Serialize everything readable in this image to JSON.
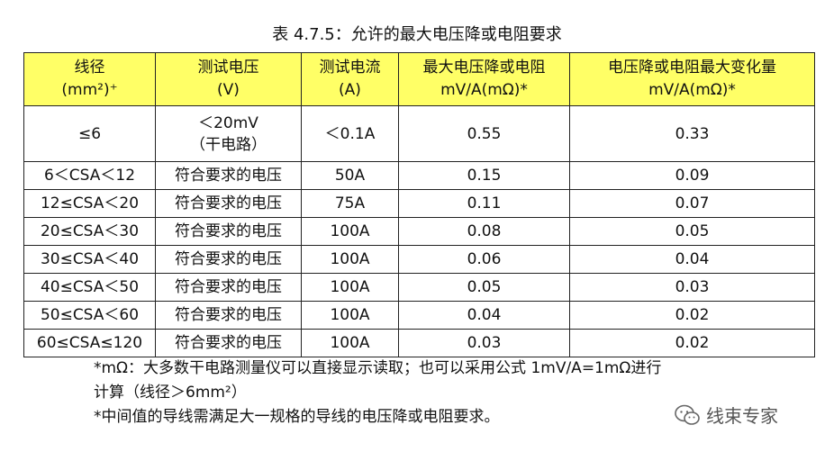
{
  "caption": "表 4.7.5：允许的最大电压降或电阻要求",
  "headers": [
    {
      "line1": "线径",
      "line2": "(mm²)⁺"
    },
    {
      "line1": "测试电压",
      "line2": "(V)"
    },
    {
      "line1": "测试电流",
      "line2": "(A)"
    },
    {
      "line1": "最大电压降或电阻",
      "line2": "mV/A(mΩ)*"
    },
    {
      "line1": "电压降或电阻最大变化量",
      "line2": "mV/A(mΩ)*"
    }
  ],
  "first_row": {
    "size": "≤6",
    "voltage_line1": "＜20mV",
    "voltage_line2": "（干电路）",
    "current": "＜0.1A",
    "max_drop": "0.55",
    "max_change": "0.33"
  },
  "rows": [
    {
      "size": "6＜CSA＜12",
      "voltage": "符合要求的电压",
      "current": "50A",
      "max_drop": "0.15",
      "max_change": "0.09"
    },
    {
      "size": "12≤CSA＜20",
      "voltage": "符合要求的电压",
      "current": "75A",
      "max_drop": "0.11",
      "max_change": "0.07"
    },
    {
      "size": "20≤CSA＜30",
      "voltage": "符合要求的电压",
      "current": "100A",
      "max_drop": "0.08",
      "max_change": "0.05"
    },
    {
      "size": "30≤CSA＜40",
      "voltage": "符合要求的电压",
      "current": "100A",
      "max_drop": "0.06",
      "max_change": "0.04"
    },
    {
      "size": "40≤CSA＜50",
      "voltage": "符合要求的电压",
      "current": "100A",
      "max_drop": "0.05",
      "max_change": "0.03"
    },
    {
      "size": "50≤CSA＜60",
      "voltage": "符合要求的电压",
      "current": "100A",
      "max_drop": "0.04",
      "max_change": "0.02"
    },
    {
      "size": "60≤CSA≤120",
      "voltage": "符合要求的电压",
      "current": "100A",
      "max_drop": "0.03",
      "max_change": "0.02"
    }
  ],
  "notes": {
    "note1_line1": "*mΩ：大多数干电路测量仪可以直接显示读取；也可以采用公式 1mV/A=1mΩ进行",
    "note1_line2": "计算（线径＞6mm²）",
    "note2": "*中间值的导线需满足大一规格的导线的电压降或电阻要求。"
  },
  "watermark": {
    "text": "线束专家",
    "icon": "wechat-icon"
  }
}
